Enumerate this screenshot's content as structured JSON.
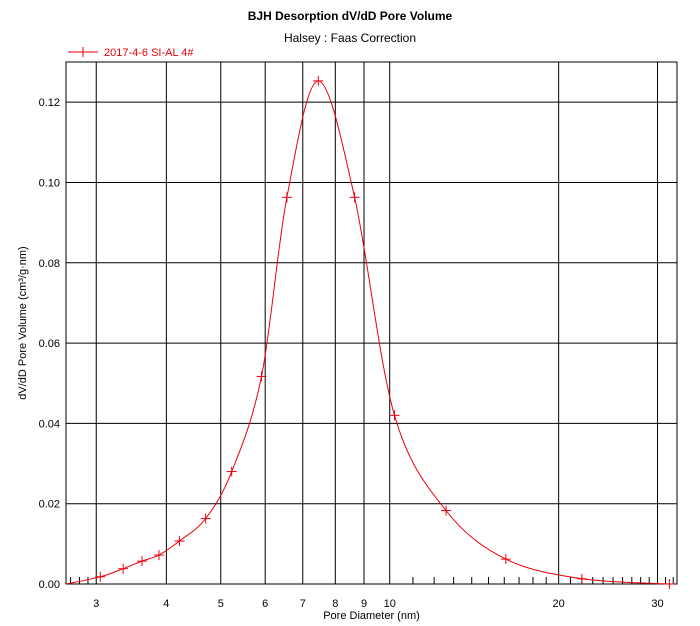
{
  "chart_data": {
    "type": "line",
    "title": "BJH Desorption dV/dD Pore Volume",
    "subtitle": "Halsey : Faas Correction",
    "xlabel": "Pore Diameter (nm)",
    "ylabel": "dV/dD Pore Volume (cm³/g·nm)",
    "x_scale": "log",
    "xlim": [
      2.65,
      32.5
    ],
    "ylim": [
      0,
      0.13
    ],
    "x_ticks": [
      3,
      4,
      5,
      6,
      7,
      8,
      9,
      10,
      20,
      30
    ],
    "x_minor_ticks": [
      2.7,
      2.8,
      2.9,
      11,
      12,
      13,
      14,
      15,
      16,
      17,
      18,
      19,
      21,
      22,
      23,
      24,
      25,
      26,
      27,
      28,
      29,
      31,
      32
    ],
    "y_ticks": [
      0.0,
      0.02,
      0.04,
      0.06,
      0.08,
      0.1,
      0.12
    ],
    "y_tick_labels": [
      "0.00",
      "0.02",
      "0.04",
      "0.06",
      "0.08",
      "0.10",
      "0.12"
    ],
    "grid": true,
    "legend_position": "top-left",
    "color": "#e8000b",
    "series": [
      {
        "name": "2017-4-6 SI-AL 4#",
        "x": [
          3.05,
          3.35,
          3.62,
          3.88,
          4.22,
          4.7,
          5.23,
          5.91,
          6.56,
          7.46,
          8.66,
          10.2,
          12.6,
          16.1,
          22.0,
          31.5
        ],
        "y": [
          0.0018,
          0.0038,
          0.0057,
          0.0072,
          0.0107,
          0.0163,
          0.028,
          0.0517,
          0.0963,
          0.1253,
          0.0963,
          0.042,
          0.0183,
          0.0062,
          0.0013,
          0.0
        ]
      }
    ]
  }
}
